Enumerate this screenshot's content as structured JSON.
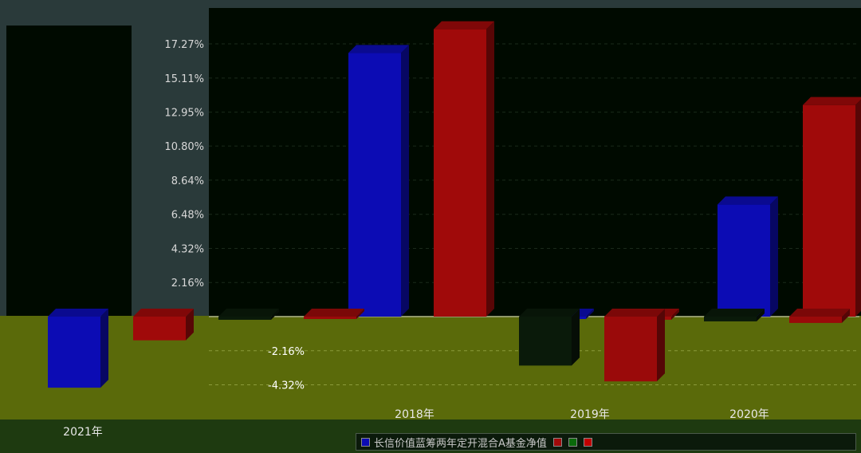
{
  "chart_data": {
    "type": "bar",
    "categories": [
      "2018年",
      "2019年",
      "2020年",
      "2021年"
    ],
    "series": [
      {
        "name": "长信价值蓝筹两年定开混合A基金净值",
        "color": "#0c0cb4",
        "values": [
          16.7,
          0.0,
          7.1,
          -4.5
        ]
      },
      {
        "name": "",
        "color": "#a00a0a",
        "values": [
          18.2,
          -0.2,
          13.4,
          -1.5
        ]
      },
      {
        "name": "",
        "color": "#0a1a0a",
        "values": [
          -3.1,
          -0.3,
          -0.3,
          -0.2
        ]
      },
      {
        "name": "",
        "color": "#9a0a0a",
        "values": [
          -4.1,
          -0.4,
          -0.4,
          0.0
        ]
      }
    ],
    "yticks": [
      "17.27%",
      "15.11%",
      "12.95%",
      "10.80%",
      "8.64%",
      "6.48%",
      "4.32%",
      "2.16%",
      "-2.16%",
      "-4.32%"
    ],
    "ytick_values": [
      17.27,
      15.11,
      12.95,
      10.8,
      8.64,
      6.48,
      4.32,
      2.16,
      -2.16,
      -4.32
    ],
    "ylim": [
      -4.32,
      19.0
    ],
    "grid": true,
    "legend_position": "bottom"
  }
}
